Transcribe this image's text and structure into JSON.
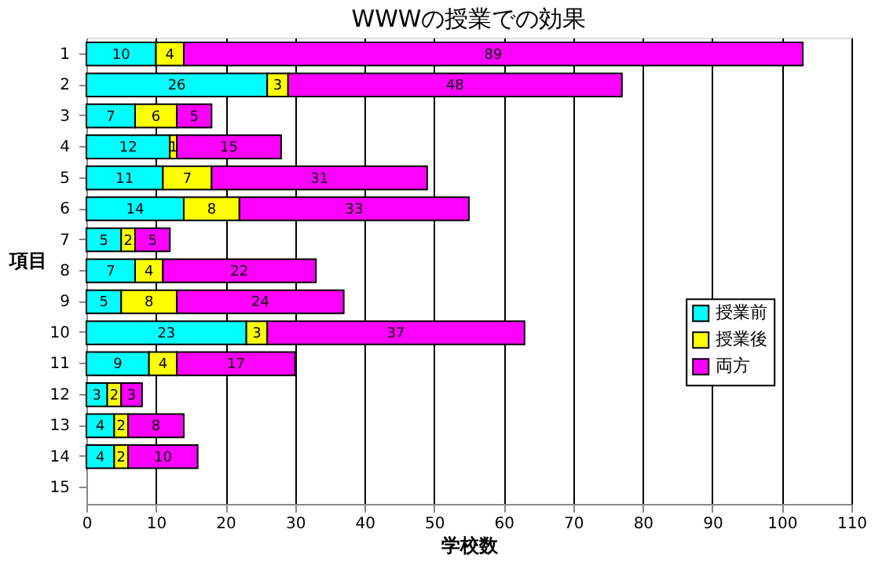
{
  "chart_data": {
    "type": "bar",
    "orientation": "horizontal",
    "stacked": true,
    "title": "WWWの授業での効果",
    "xlabel": "学校数",
    "ylabel": "項目",
    "categories": [
      "1",
      "2",
      "3",
      "4",
      "5",
      "6",
      "7",
      "8",
      "9",
      "10",
      "11",
      "12",
      "13",
      "14",
      "15"
    ],
    "series": [
      {
        "name": "授業前",
        "color": "#00ffff",
        "values": [
          10,
          26,
          7,
          12,
          11,
          14,
          5,
          7,
          5,
          23,
          9,
          3,
          4,
          4,
          null
        ]
      },
      {
        "name": "授業後",
        "color": "#ffff00",
        "values": [
          4,
          3,
          6,
          1,
          7,
          8,
          2,
          4,
          8,
          3,
          4,
          2,
          2,
          2,
          null
        ]
      },
      {
        "name": "両方",
        "color": "#ff00ff",
        "values": [
          89,
          48,
          5,
          15,
          31,
          33,
          5,
          22,
          24,
          37,
          17,
          3,
          8,
          10,
          null
        ]
      }
    ],
    "xlim": [
      0,
      110
    ],
    "xticks": [
      0,
      10,
      20,
      30,
      40,
      50,
      60,
      70,
      80,
      90,
      100,
      110
    ],
    "grid": "x",
    "legend": "right",
    "data_labels": true
  }
}
